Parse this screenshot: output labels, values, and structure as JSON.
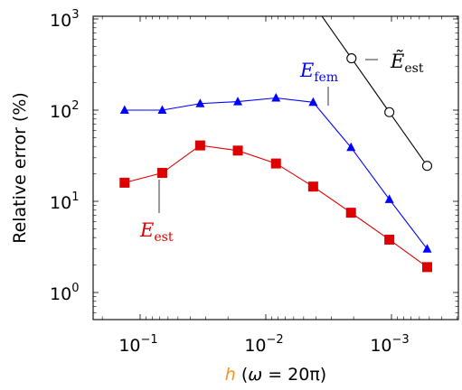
{
  "chart_data": {
    "type": "line",
    "xscale": "log",
    "yscale": "log",
    "x_reversed": true,
    "xlim": [
      0.0001,
      0.2
    ],
    "ylim": [
      0.7,
      1000
    ],
    "xlabel": {
      "var": "h",
      "rest_open": " (",
      "omega": "ω",
      "rest_eq": " = 20π)",
      "color": "#f7931e"
    },
    "ylabel": "Relative error (%)",
    "xticks": [
      {
        "value": 0.1,
        "base": "10",
        "exp": "−1"
      },
      {
        "value": 0.01,
        "base": "10",
        "exp": "−2"
      },
      {
        "value": 0.001,
        "base": "10",
        "exp": "−3"
      }
    ],
    "yticks": [
      {
        "value": 1,
        "base": "10",
        "exp": "0"
      },
      {
        "value": 10,
        "base": "10",
        "exp": "1"
      },
      {
        "value": 100,
        "base": "10",
        "exp": "2"
      },
      {
        "value": 1000,
        "base": "10",
        "exp": "3"
      }
    ],
    "series": [
      {
        "name": "E",
        "sub": "fem",
        "color": "#0000ff",
        "marker": "triangle",
        "x": [
          0.133,
          0.0667,
          0.0333,
          0.0167,
          0.0083,
          0.0042,
          0.0021,
          0.00104,
          0.00052
        ],
        "y": [
          100,
          100,
          118,
          124,
          136,
          122,
          39,
          10.5,
          3.0
        ]
      },
      {
        "name": "E",
        "sub": "est",
        "color": "#dd0000",
        "marker": "square",
        "x": [
          0.133,
          0.0667,
          0.0333,
          0.0167,
          0.0083,
          0.0042,
          0.0021,
          0.00104,
          0.00052
        ],
        "y": [
          16,
          20.5,
          41,
          36,
          26,
          14.5,
          7.5,
          3.8,
          1.9
        ]
      },
      {
        "name": "Ẽ",
        "sub": "est",
        "color": "#000000",
        "marker": "circle",
        "x": [
          0.00208,
          0.00104,
          0.00052
        ],
        "y": [
          370,
          95,
          24.5
        ]
      }
    ],
    "grid": false
  }
}
